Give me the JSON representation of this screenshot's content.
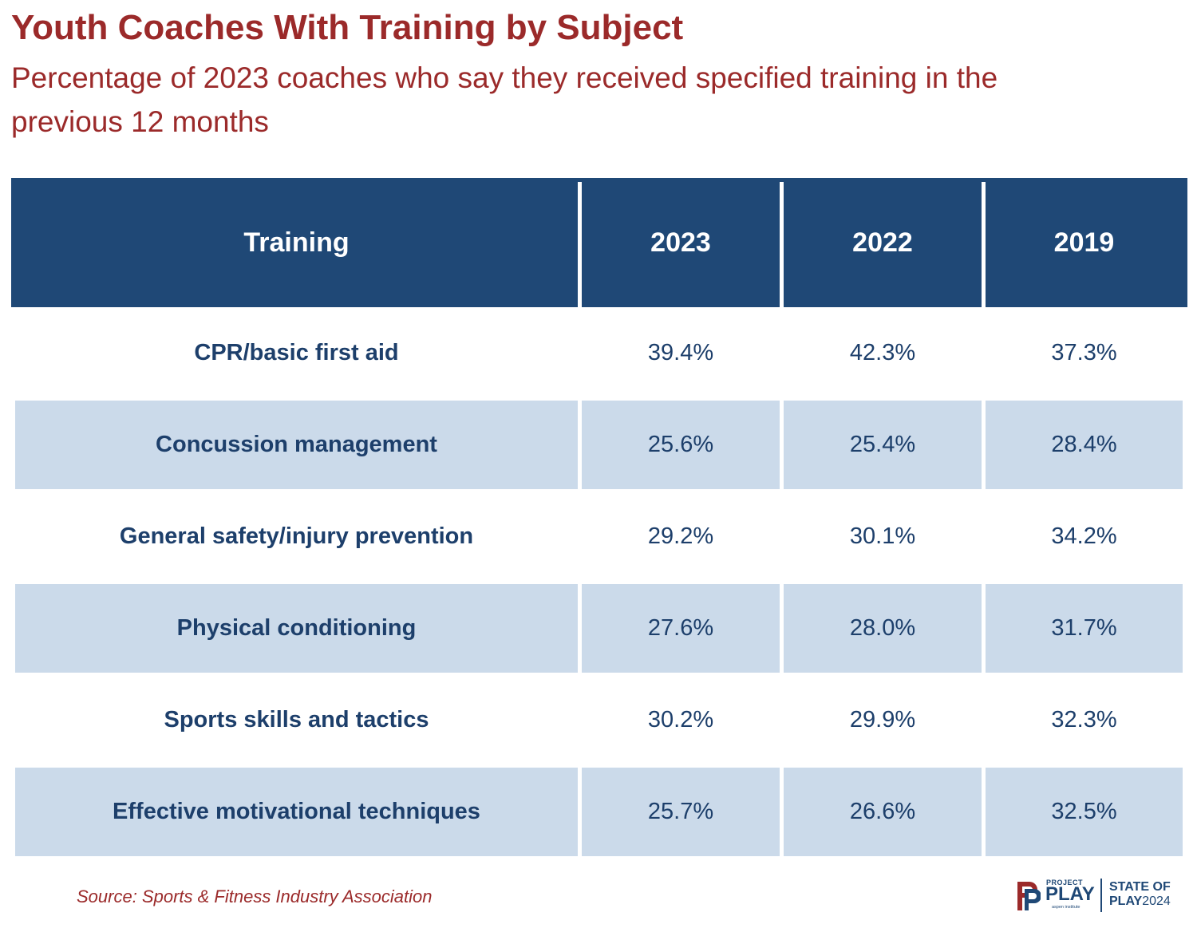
{
  "title": "Youth Coaches With Training by Subject",
  "subtitle": "Percentage of 2023 coaches who say they received specified training in the previous 12 months",
  "source": "Source: Sports & Fitness Industry Association",
  "colors": {
    "title": "#9b2a2a",
    "header_bg": "#1f4876",
    "shaded_row": "#cbdaea",
    "body_text": "#1d3f6b"
  },
  "logo": {
    "icon": "project-play-logo-icon",
    "project": "PROJECT",
    "play": "PLAY",
    "aspen": "aspen institute",
    "state_of": "STATE OF",
    "play_word": "PLAY",
    "year": "2024"
  },
  "chart_data": {
    "type": "table",
    "columns": [
      "Training",
      "2023",
      "2022",
      "2019"
    ],
    "rows": [
      {
        "label": "CPR/basic first aid",
        "values": [
          "39.4%",
          "42.3%",
          "37.3%"
        ]
      },
      {
        "label": "Concussion management",
        "values": [
          "25.6%",
          "25.4%",
          "28.4%"
        ]
      },
      {
        "label": "General safety/injury prevention",
        "values": [
          "29.2%",
          "30.1%",
          "34.2%"
        ]
      },
      {
        "label": "Physical conditioning",
        "values": [
          "27.6%",
          "28.0%",
          "31.7%"
        ]
      },
      {
        "label": "Sports skills and tactics",
        "values": [
          "30.2%",
          "29.9%",
          "32.3%"
        ]
      },
      {
        "label": "Effective motivational techniques",
        "values": [
          "25.7%",
          "26.6%",
          "32.5%"
        ]
      }
    ]
  }
}
